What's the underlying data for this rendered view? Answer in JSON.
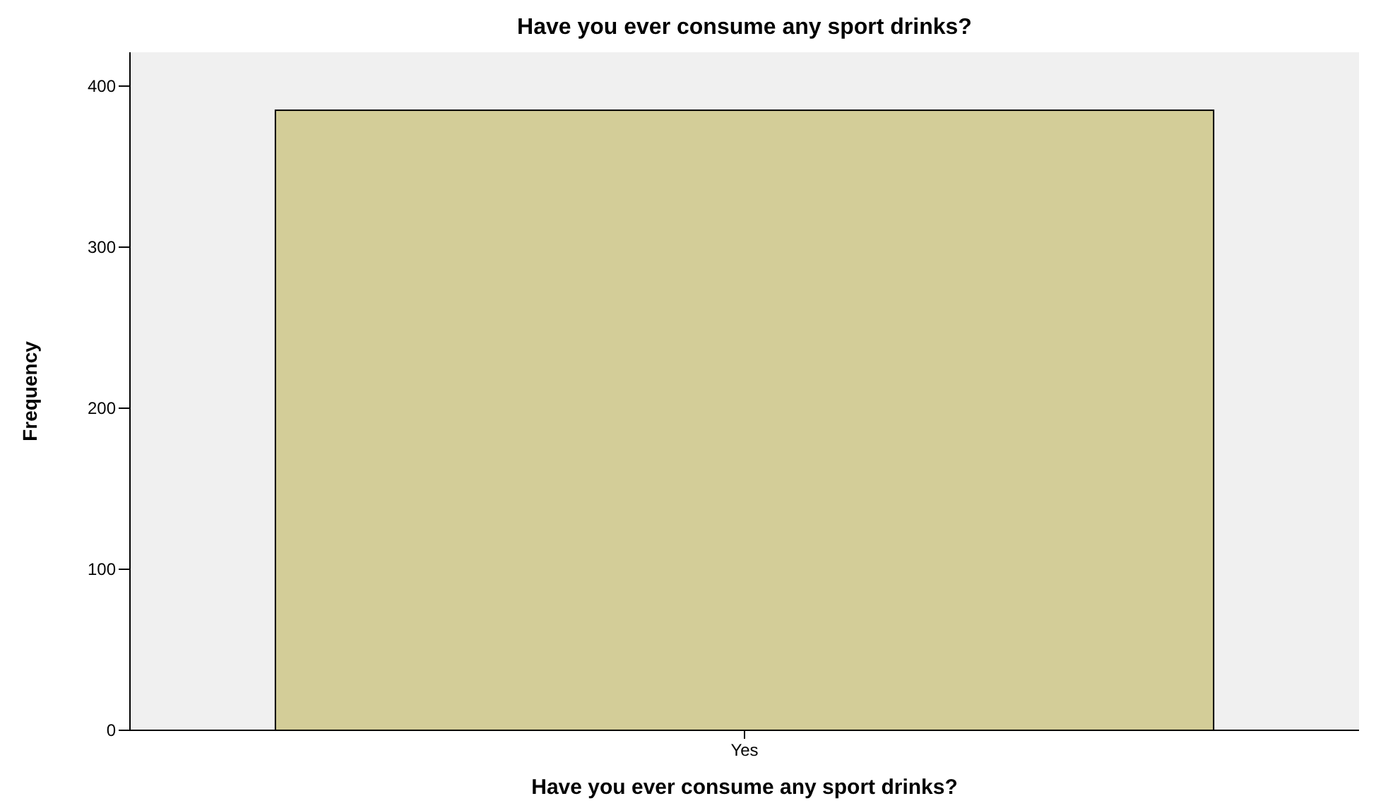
{
  "chart_data": {
    "type": "bar",
    "title": "Have you ever consume any sport drinks?",
    "xlabel": "Have you ever consume any sport drinks?",
    "ylabel": "Frequency",
    "categories": [
      "Yes"
    ],
    "values": [
      385
    ],
    "color": "#d3cd98",
    "ylim": [
      0,
      421
    ],
    "yticks": [
      0,
      100,
      200,
      300,
      400
    ],
    "grid": false
  }
}
